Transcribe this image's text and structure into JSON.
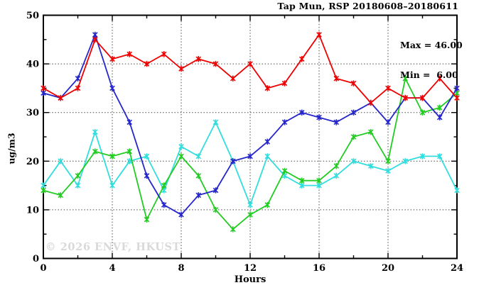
{
  "header": {
    "title": "Tap Mun, RSP 20180608–20180611"
  },
  "annotation": {
    "max_label": "Max = 46.00",
    "min_label": "Min =  6.00"
  },
  "watermark": "© 2026 ENVF, HKUST",
  "chart_data": {
    "type": "line",
    "title": "Tap Mun, RSP 20180608–20180611",
    "xlabel": "Hours",
    "ylabel": "ug/m3",
    "xlim": [
      0,
      24
    ],
    "ylim": [
      0,
      50
    ],
    "x_major_ticks": [
      0,
      4,
      8,
      12,
      16,
      20,
      24
    ],
    "x_minor_step": 2,
    "y_major_ticks": [
      0,
      10,
      20,
      30,
      40,
      50
    ],
    "y_minor_step": 5,
    "x_gridlines": [
      4,
      8,
      12,
      16,
      20
    ],
    "y_gridlines": [
      10,
      20,
      30,
      40
    ],
    "grid": true,
    "legend_position": "none",
    "marker": "asterisk",
    "hours": [
      0,
      1,
      2,
      3,
      4,
      5,
      6,
      7,
      8,
      9,
      10,
      11,
      12,
      13,
      14,
      15,
      16,
      17,
      18,
      19,
      20,
      21,
      22,
      23,
      24
    ],
    "series": [
      {
        "name": "cyan-day",
        "color": "#33dddd",
        "values": [
          15,
          20,
          15,
          26,
          15,
          20,
          21,
          14,
          23,
          21,
          28,
          20,
          11,
          21,
          17,
          15,
          15,
          17,
          20,
          19,
          18,
          20,
          21,
          21,
          14
        ]
      },
      {
        "name": "green-day",
        "color": "#22cc22",
        "values": [
          14,
          13,
          17,
          22,
          21,
          22,
          8,
          15,
          21,
          17,
          10,
          6,
          9,
          11,
          18,
          16,
          16,
          19,
          25,
          26,
          20,
          37,
          30,
          31,
          34
        ]
      },
      {
        "name": "blue-day",
        "color": "#2525cc",
        "values": [
          34,
          33,
          37,
          46,
          35,
          28,
          17,
          11,
          9,
          13,
          14,
          20,
          21,
          24,
          28,
          30,
          29,
          28,
          30,
          32,
          28,
          33,
          33,
          29,
          35
        ]
      },
      {
        "name": "red-day",
        "color": "#ee0000",
        "values": [
          35,
          33,
          35,
          45,
          41,
          42,
          40,
          42,
          39,
          41,
          40,
          37,
          40,
          35,
          36,
          41,
          46,
          37,
          36,
          32,
          35,
          33,
          33,
          37,
          33
        ]
      }
    ],
    "stats": {
      "max": 46.0,
      "min": 6.0
    }
  }
}
